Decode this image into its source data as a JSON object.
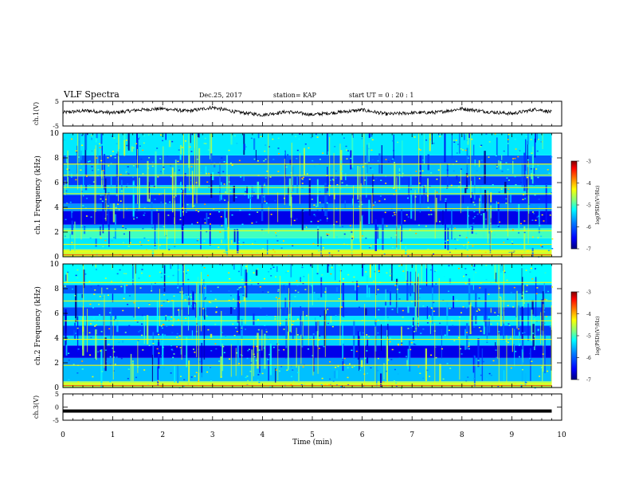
{
  "header": {
    "title": "VLF Spectra",
    "date": "Dec.25, 2017",
    "station": "station= KAP",
    "start_ut": "start  UT =   0 : 20 : 1"
  },
  "colors": {
    "waveform": "#000000",
    "colormap": [
      "#00007f",
      "#0000ff",
      "#0080ff",
      "#00ffff",
      "#80ff80",
      "#ffff00",
      "#ff8000",
      "#ff0000",
      "#7f0000"
    ]
  },
  "chart_data": [
    {
      "type": "line",
      "name": "ch1-waveform",
      "ylabel": "ch.1(V)",
      "ylim": [
        -5,
        5
      ],
      "yticks": [
        "5",
        "-5"
      ],
      "x": [
        0,
        0.5,
        1,
        1.5,
        2,
        2.5,
        3,
        3.5,
        4,
        4.5,
        5,
        5.5,
        6,
        6.5,
        7,
        7.5,
        8,
        8.5,
        9,
        9.5,
        9.8
      ],
      "y": [
        0.5,
        1.2,
        0.3,
        1.5,
        2.0,
        1.0,
        2.5,
        0.6,
        -0.5,
        0.8,
        -0.4,
        0.5,
        1.5,
        -0.2,
        0.3,
        0.5,
        2.0,
        0.8,
        0.0,
        1.8,
        0.6
      ]
    },
    {
      "type": "heatmap",
      "name": "ch1-spectrogram",
      "ylabel": "ch.1 Frequency (kHz)",
      "ylim": [
        0,
        10
      ],
      "yticks": [
        "0",
        "2",
        "4",
        "6",
        "8",
        "10"
      ],
      "colorbar": {
        "label": "log(PSD)(V²/Hz)",
        "ticks": [
          "-3",
          "-4",
          "-5",
          "-6",
          "-7"
        ],
        "range": [
          -7,
          -3
        ]
      },
      "bands_khz": [
        {
          "lo": 0.0,
          "hi": 0.6,
          "level": -4.5
        },
        {
          "lo": 0.6,
          "hi": 1.5,
          "level": -5.3
        },
        {
          "lo": 1.5,
          "hi": 2.3,
          "level": -5.0
        },
        {
          "lo": 2.3,
          "hi": 2.6,
          "level": -5.6
        },
        {
          "lo": 2.6,
          "hi": 3.7,
          "level": -6.6
        },
        {
          "lo": 3.7,
          "hi": 4.3,
          "level": -5.7
        },
        {
          "lo": 4.3,
          "hi": 5.0,
          "level": -6.3
        },
        {
          "lo": 5.0,
          "hi": 5.8,
          "level": -5.4
        },
        {
          "lo": 5.8,
          "hi": 6.5,
          "level": -6.2
        },
        {
          "lo": 6.5,
          "hi": 7.5,
          "level": -5.5
        },
        {
          "lo": 7.5,
          "hi": 8.2,
          "level": -6.0
        },
        {
          "lo": 8.2,
          "hi": 10.0,
          "level": -5.3
        }
      ],
      "lines_khz": [
        0.4,
        1.0,
        2.1,
        3.9,
        5.1,
        5.6,
        6.6,
        7.5
      ]
    },
    {
      "type": "heatmap",
      "name": "ch2-spectrogram",
      "ylabel": "ch.2 Frequency (kHz)",
      "ylim": [
        0,
        10
      ],
      "yticks": [
        "0",
        "2",
        "4",
        "6",
        "8",
        "10"
      ],
      "colorbar": {
        "label": "log(PSD)(V²/Hz)",
        "ticks": [
          "-3",
          "-4",
          "-5",
          "-6",
          "-7"
        ],
        "range": [
          -7,
          -3
        ]
      },
      "bands_khz": [
        {
          "lo": 0.0,
          "hi": 0.5,
          "level": -4.6
        },
        {
          "lo": 0.5,
          "hi": 1.8,
          "level": -5.5
        },
        {
          "lo": 1.8,
          "hi": 2.4,
          "level": -5.7
        },
        {
          "lo": 2.4,
          "hi": 3.4,
          "level": -6.6
        },
        {
          "lo": 3.4,
          "hi": 4.2,
          "level": -5.4
        },
        {
          "lo": 4.2,
          "hi": 5.0,
          "level": -6.2
        },
        {
          "lo": 5.0,
          "hi": 5.8,
          "level": -5.3
        },
        {
          "lo": 5.8,
          "hi": 6.5,
          "level": -6.1
        },
        {
          "lo": 6.5,
          "hi": 7.6,
          "level": -5.4
        },
        {
          "lo": 7.6,
          "hi": 8.3,
          "level": -6.0
        },
        {
          "lo": 8.3,
          "hi": 10.0,
          "level": -5.2
        }
      ],
      "lines_khz": [
        0.3,
        1.8,
        3.9,
        5.4,
        7.0,
        8.5
      ]
    },
    {
      "type": "line",
      "name": "ch3-waveform",
      "ylabel": "ch.3(V)",
      "ylim": [
        -5,
        5
      ],
      "yticks": [
        "5",
        "0",
        "-5"
      ],
      "x": [
        0,
        9.8
      ],
      "y": [
        -1.5,
        -1.5
      ]
    }
  ],
  "x_axis": {
    "label": "Time  (min)",
    "range": [
      0,
      10
    ],
    "ticks": [
      "0",
      "1",
      "2",
      "3",
      "4",
      "5",
      "6",
      "7",
      "8",
      "9",
      "10"
    ]
  }
}
